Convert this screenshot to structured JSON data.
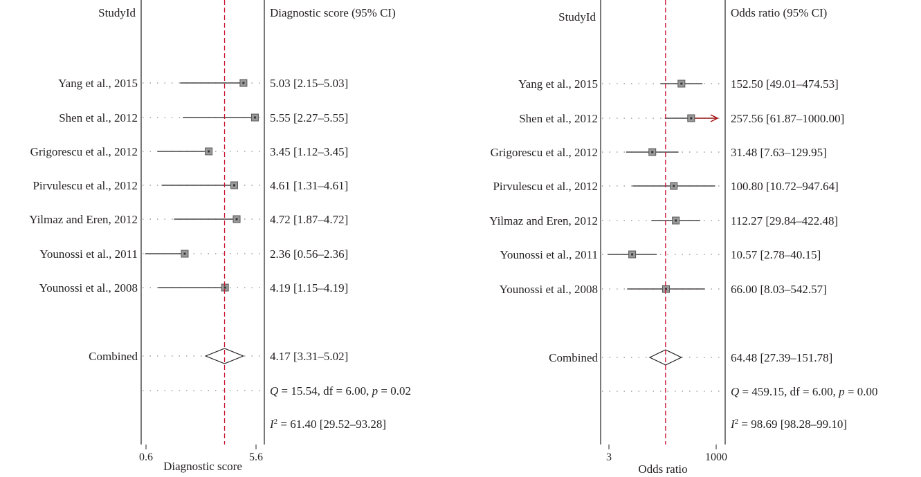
{
  "chart_data": [
    {
      "type": "forest",
      "header_left": "StudyId",
      "header_right": "Diagnostic score (95% CI)",
      "xlabel": "Diagnostic score",
      "xscale": "linear",
      "xlim": [
        0.6,
        5.6
      ],
      "ticks": [
        "0.6",
        "5.6"
      ],
      "reference_line": 4.17,
      "studies": [
        {
          "label": "Yang et al., 2015",
          "estimate": 5.03,
          "lower": 2.15,
          "upper": 5.03,
          "text": "5.03 [2.15–5.03]"
        },
        {
          "label": "Shen et al., 2012",
          "estimate": 5.55,
          "lower": 2.27,
          "upper": 5.55,
          "text": "5.55 [2.27–5.55]"
        },
        {
          "label": "Grigorescu et al., 2012",
          "estimate": 3.45,
          "lower": 1.12,
          "upper": 3.45,
          "text": "3.45 [1.12–3.45]"
        },
        {
          "label": "Pirvulescu et al., 2012",
          "estimate": 4.61,
          "lower": 1.31,
          "upper": 4.61,
          "text": "4.61 [1.31–4.61]"
        },
        {
          "label": "Yilmaz and Eren, 2012",
          "estimate": 4.72,
          "lower": 1.87,
          "upper": 4.72,
          "text": "4.72 [1.87–4.72]"
        },
        {
          "label": "Younossi et al., 2011",
          "estimate": 2.36,
          "lower": 0.56,
          "upper": 2.36,
          "text": "2.36 [0.56–2.36]"
        },
        {
          "label": "Younossi et al., 2008",
          "estimate": 4.19,
          "lower": 1.15,
          "upper": 4.19,
          "text": "4.19 [1.15–4.19]"
        }
      ],
      "combined": {
        "label": "Combined",
        "estimate": 4.17,
        "lower": 3.31,
        "upper": 5.02,
        "text": "4.17 [3.31–5.02]"
      },
      "q_stat": {
        "Q": "15.54",
        "df": "6.00",
        "p": "0.02"
      },
      "i2": {
        "value": "61.40",
        "ci": "[29.52–93.28]"
      }
    },
    {
      "type": "forest",
      "header_left": "StudyId",
      "header_right": "Odds ratio (95% CI)",
      "xlabel": "Odds ratio",
      "xscale": "log",
      "xlim": [
        3,
        1000
      ],
      "ticks": [
        "3",
        "1000"
      ],
      "reference_line": 64.48,
      "studies": [
        {
          "label": "Yang et al., 2015",
          "estimate": 152.5,
          "lower": 49.01,
          "upper": 474.53,
          "text": "152.50 [49.01–474.53]"
        },
        {
          "label": "Shen et al., 2012",
          "estimate": 257.56,
          "lower": 61.87,
          "upper": 1000.0,
          "text": "257.56 [61.87–1000.00]",
          "arrow": true
        },
        {
          "label": "Grigorescu et al., 2012",
          "estimate": 31.48,
          "lower": 7.63,
          "upper": 129.95,
          "text": "31.48 [7.63–129.95]"
        },
        {
          "label": "Pirvulescu et al., 2012",
          "estimate": 100.8,
          "lower": 10.72,
          "upper": 947.64,
          "text": "100.80 [10.72–947.64]"
        },
        {
          "label": "Yilmaz and Eren, 2012",
          "estimate": 112.27,
          "lower": 29.84,
          "upper": 422.48,
          "text": "112.27 [29.84–422.48]"
        },
        {
          "label": "Younossi et al., 2011",
          "estimate": 10.57,
          "lower": 2.78,
          "upper": 40.15,
          "text": "10.57 [2.78–40.15]"
        },
        {
          "label": "Younossi et al., 2008",
          "estimate": 66.0,
          "lower": 8.03,
          "upper": 542.57,
          "text": "66.00 [8.03–542.57]"
        }
      ],
      "combined": {
        "label": "Combined",
        "estimate": 64.48,
        "lower": 27.39,
        "upper": 151.78,
        "text": "64.48 [27.39–151.78]"
      },
      "q_stat": {
        "Q": "459.15",
        "df": "6.00",
        "p": "0.00"
      },
      "i2": {
        "value": "98.69",
        "ci": "[98.28–99.10]"
      }
    }
  ],
  "colors": {
    "reference_line": "#c8102e",
    "arrow": "#a00000",
    "ink": "#231f20",
    "point_fill": "#9a9a9a",
    "dots": "#8a8a8a"
  }
}
